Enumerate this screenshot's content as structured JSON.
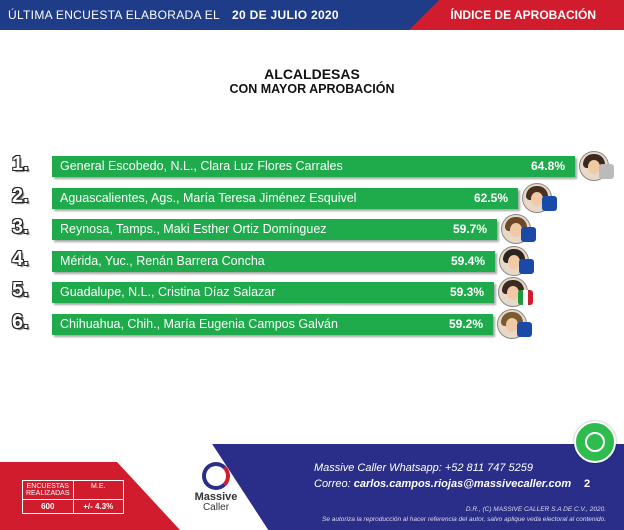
{
  "header": {
    "left_text": "ÚLTIMA ENCUESTA ELABORADA EL",
    "date": "20 DE JULIO 2020",
    "right_text": "ÍNDICE DE APROBACIÓN"
  },
  "chart_data": {
    "type": "bar",
    "title": "ALCALDESAS",
    "subtitle": "CON MAYOR APROBACIÓN",
    "orientation": "horizontal",
    "ranks": [
      "1.",
      "2.",
      "3.",
      "4.",
      "5.",
      "6."
    ],
    "categories": [
      "General Escobedo, N.L., Clara Luz Flores Carrales",
      "Aguascalientes, Ags., María Teresa Jiménez Esquivel",
      "Reynosa, Tamps., Maki Esther Ortiz Domínguez",
      "Mérida, Yuc., Renán Barrera Concha",
      "Guadalupe, N.L., Cristina Díaz Salazar",
      "Chihuahua, Chih., María Eugenia Campos Galván"
    ],
    "values": [
      64.8,
      62.5,
      59.7,
      59.4,
      59.3,
      59.2
    ],
    "value_labels": [
      "64.8%",
      "62.5%",
      "59.7%",
      "59.4%",
      "59.3%",
      "59.2%"
    ],
    "party_badges": [
      "independent",
      "PAN",
      "PAN",
      "PAN",
      "PRI",
      "PAN"
    ],
    "bar_color": "#1faa4c"
  },
  "footer": {
    "stats_headers": [
      "ENCUESTAS REALIZADAS",
      "M.E."
    ],
    "stats_values": [
      "600",
      "+/- 4.3%"
    ],
    "logo_name": "Massive",
    "logo_name2": "Caller",
    "whatsapp_line": "Massive Caller Whatsapp: +52    811 747 5259",
    "email_label": "Correo:",
    "email": "carlos.campos.riojas@massivecaller.com",
    "page_number": "2",
    "copyright": "D.R., (C) MASSIVE CALLER S.A DE C.V., 2020.",
    "legal_note": "Se autoriza la reproducción al hacer referencia del autor, salvo aplique veda electoral al contenido."
  },
  "colors": {
    "blue": "#2a2e88",
    "red": "#d01c2c",
    "green": "#1faa4c"
  }
}
